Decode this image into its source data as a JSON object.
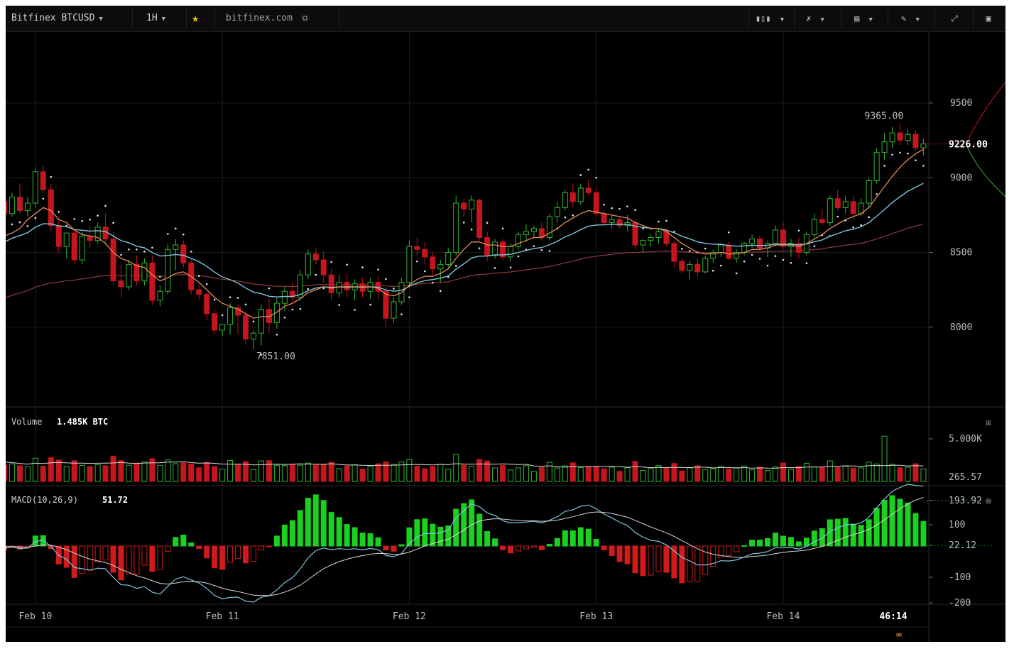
{
  "toolbar": {
    "symbol": "Bitfinex BTCUSD",
    "interval": "1H",
    "site": "bitfinex.com",
    "icons": [
      "candles-icon",
      "indicators-icon",
      "compare-icon",
      "draw-icon",
      "fullscreen-icon",
      "screenshot-icon"
    ]
  },
  "colors": {
    "background": "#000000",
    "up": "#2fb62f",
    "down": "#c4161c",
    "ema_fast": "#e38a5a",
    "ema_slow": "#7fc3db",
    "ema_long": "#8b3a40",
    "macd_line": "#7fc3db",
    "signal_line": "#d8d8d8",
    "hist_up": "#19d11f",
    "hist_down": "#d21a1a"
  },
  "chart_data": [
    {
      "type": "candlestick",
      "panel": "price",
      "x_ticks": [
        "Feb 10",
        "Feb 11",
        "Feb 12",
        "Feb 13",
        "Feb 14"
      ],
      "x_ticks_hour_index": [
        5,
        29,
        53,
        77,
        101
      ],
      "y_ticks": [
        8000,
        8500,
        9000,
        9500
      ],
      "ylim": [
        7500,
        9980
      ],
      "current_price": "9226.00",
      "high_annotation": "9365.00",
      "low_annotation": "7851.00",
      "ohlc": [
        [
          8600,
          8880,
          8520,
          8840
        ],
        [
          8840,
          8900,
          8720,
          8760
        ],
        [
          8760,
          8900,
          8740,
          8870
        ],
        [
          8870,
          8960,
          8760,
          8780
        ],
        [
          8780,
          8870,
          8740,
          8830
        ],
        [
          8830,
          9070,
          8800,
          9040
        ],
        [
          9040,
          9080,
          8900,
          8920
        ],
        [
          8920,
          8960,
          8640,
          8680
        ],
        [
          8680,
          8720,
          8500,
          8540
        ],
        [
          8540,
          8620,
          8460,
          8630
        ],
        [
          8630,
          8660,
          8420,
          8450
        ],
        [
          8450,
          8640,
          8420,
          8610
        ],
        [
          8610,
          8680,
          8530,
          8580
        ],
        [
          8580,
          8700,
          8560,
          8670
        ],
        [
          8670,
          8760,
          8560,
          8590
        ],
        [
          8590,
          8640,
          8280,
          8310
        ],
        [
          8310,
          8420,
          8200,
          8270
        ],
        [
          8270,
          8450,
          8250,
          8420
        ],
        [
          8420,
          8480,
          8280,
          8310
        ],
        [
          8310,
          8460,
          8280,
          8430
        ],
        [
          8430,
          8480,
          8150,
          8180
        ],
        [
          8180,
          8280,
          8140,
          8240
        ],
        [
          8240,
          8560,
          8220,
          8520
        ],
        [
          8520,
          8590,
          8380,
          8550
        ],
        [
          8550,
          8580,
          8400,
          8430
        ],
        [
          8430,
          8460,
          8220,
          8250
        ],
        [
          8250,
          8290,
          8180,
          8220
        ],
        [
          8220,
          8230,
          8050,
          8090
        ],
        [
          8090,
          8120,
          7950,
          7980
        ],
        [
          7980,
          8010,
          7940,
          8020
        ],
        [
          8020,
          8160,
          7950,
          8130
        ],
        [
          8130,
          8150,
          7950,
          8080
        ],
        [
          8080,
          8100,
          7880,
          7920
        ],
        [
          7920,
          7980,
          7851,
          7960
        ],
        [
          7960,
          8150,
          7880,
          8120
        ],
        [
          8120,
          8190,
          7960,
          8030
        ],
        [
          8030,
          8200,
          7990,
          8160
        ],
        [
          8160,
          8270,
          8110,
          8240
        ],
        [
          8240,
          8300,
          8170,
          8200
        ],
        [
          8200,
          8380,
          8180,
          8350
        ],
        [
          8350,
          8520,
          8320,
          8490
        ],
        [
          8490,
          8530,
          8420,
          8450
        ],
        [
          8450,
          8510,
          8300,
          8350
        ],
        [
          8350,
          8390,
          8180,
          8230
        ],
        [
          8230,
          8350,
          8200,
          8300
        ],
        [
          8300,
          8360,
          8200,
          8250
        ],
        [
          8250,
          8320,
          8180,
          8290
        ],
        [
          8290,
          8330,
          8200,
          8240
        ],
        [
          8240,
          8330,
          8190,
          8300
        ],
        [
          8300,
          8340,
          8190,
          8240
        ],
        [
          8240,
          8270,
          8000,
          8060
        ],
        [
          8060,
          8200,
          8030,
          8170
        ],
        [
          8170,
          8330,
          8150,
          8300
        ],
        [
          8300,
          8580,
          8270,
          8540
        ],
        [
          8540,
          8600,
          8480,
          8520
        ],
        [
          8520,
          8570,
          8420,
          8470
        ],
        [
          8470,
          8500,
          8350,
          8390
        ],
        [
          8390,
          8450,
          8300,
          8420
        ],
        [
          8420,
          8530,
          8400,
          8500
        ],
        [
          8500,
          8880,
          8480,
          8830
        ],
        [
          8830,
          8860,
          8740,
          8790
        ],
        [
          8790,
          8880,
          8700,
          8850
        ],
        [
          8850,
          8860,
          8580,
          8600
        ],
        [
          8600,
          8640,
          8440,
          8480
        ],
        [
          8480,
          8590,
          8460,
          8570
        ],
        [
          8570,
          8590,
          8450,
          8470
        ],
        [
          8470,
          8560,
          8440,
          8540
        ],
        [
          8540,
          8640,
          8520,
          8620
        ],
        [
          8620,
          8690,
          8570,
          8640
        ],
        [
          8640,
          8680,
          8600,
          8660
        ],
        [
          8660,
          8700,
          8580,
          8600
        ],
        [
          8600,
          8760,
          8580,
          8740
        ],
        [
          8740,
          8840,
          8700,
          8800
        ],
        [
          8800,
          8920,
          8780,
          8900
        ],
        [
          8900,
          8960,
          8800,
          8840
        ],
        [
          8840,
          8960,
          8820,
          8930
        ],
        [
          8930,
          8990,
          8880,
          8900
        ],
        [
          8900,
          8930,
          8740,
          8760
        ],
        [
          8760,
          8780,
          8680,
          8700
        ],
        [
          8700,
          8750,
          8660,
          8720
        ],
        [
          8720,
          8740,
          8660,
          8680
        ],
        [
          8680,
          8750,
          8640,
          8700
        ],
        [
          8700,
          8720,
          8520,
          8550
        ],
        [
          8550,
          8590,
          8500,
          8580
        ],
        [
          8580,
          8620,
          8540,
          8600
        ],
        [
          8600,
          8660,
          8560,
          8640
        ],
        [
          8640,
          8660,
          8540,
          8560
        ],
        [
          8560,
          8580,
          8400,
          8440
        ],
        [
          8440,
          8460,
          8360,
          8380
        ],
        [
          8380,
          8440,
          8320,
          8420
        ],
        [
          8420,
          8460,
          8340,
          8370
        ],
        [
          8370,
          8480,
          8360,
          8460
        ],
        [
          8460,
          8520,
          8430,
          8500
        ],
        [
          8500,
          8560,
          8470,
          8550
        ],
        [
          8550,
          8570,
          8450,
          8460
        ],
        [
          8460,
          8520,
          8430,
          8500
        ],
        [
          8500,
          8570,
          8480,
          8560
        ],
        [
          8560,
          8620,
          8530,
          8590
        ],
        [
          8590,
          8610,
          8510,
          8530
        ],
        [
          8530,
          8580,
          8470,
          8560
        ],
        [
          8560,
          8680,
          8540,
          8650
        ],
        [
          8650,
          8700,
          8520,
          8540
        ],
        [
          8540,
          8590,
          8470,
          8560
        ],
        [
          8560,
          8600,
          8460,
          8500
        ],
        [
          8500,
          8640,
          8480,
          8620
        ],
        [
          8620,
          8760,
          8600,
          8720
        ],
        [
          8720,
          8790,
          8680,
          8700
        ],
        [
          8700,
          8880,
          8680,
          8860
        ],
        [
          8860,
          8920,
          8780,
          8800
        ],
        [
          8800,
          8880,
          8760,
          8840
        ],
        [
          8840,
          8880,
          8720,
          8760
        ],
        [
          8760,
          8860,
          8740,
          8830
        ],
        [
          8830,
          9000,
          8800,
          8980
        ],
        [
          8980,
          9200,
          8960,
          9170
        ],
        [
          9170,
          9300,
          9120,
          9240
        ],
        [
          9240,
          9340,
          9200,
          9300
        ],
        [
          9300,
          9365,
          9220,
          9250
        ],
        [
          9250,
          9330,
          9220,
          9290
        ],
        [
          9290,
          9320,
          9180,
          9200
        ],
        [
          9200,
          9260,
          9150,
          9226
        ]
      ],
      "ema_fast": [
        8560,
        8610,
        8630,
        8660,
        8720,
        8760,
        8800,
        8780,
        8720,
        8700,
        8650,
        8620,
        8610,
        8600,
        8560,
        8500,
        8460,
        8440,
        8410,
        8400,
        8350,
        8310,
        8330,
        8360,
        8370,
        8340,
        8300,
        8250,
        8200,
        8160,
        8140,
        8120,
        8090,
        8060,
        8070,
        8070,
        8100,
        8140,
        8160,
        8190,
        8230,
        8250,
        8270,
        8260,
        8270,
        8270,
        8270,
        8270,
        8270,
        8260,
        8220,
        8210,
        8230,
        8280,
        8320,
        8340,
        8340,
        8360,
        8390,
        8460,
        8520,
        8570,
        8570,
        8550,
        8550,
        8540,
        8540,
        8560,
        8580,
        8600,
        8600,
        8630,
        8660,
        8700,
        8730,
        8760,
        8780,
        8770,
        8760,
        8750,
        8740,
        8730,
        8700,
        8680,
        8660,
        8660,
        8640,
        8600,
        8560,
        8530,
        8500,
        8490,
        8490,
        8500,
        8490,
        8490,
        8500,
        8520,
        8520,
        8530,
        8550,
        8550,
        8550,
        8540,
        8560,
        8590,
        8620,
        8660,
        8690,
        8720,
        8740,
        8760,
        8800,
        8870,
        8940,
        9010,
        9070,
        9120,
        9160,
        9190
      ]
    },
    {
      "type": "bar",
      "panel": "volume",
      "label": "Volume",
      "value_label": "1.485K BTC",
      "y_ticks": [
        "5.000K",
        "265.57"
      ]
    },
    {
      "type": "line+bar",
      "panel": "macd",
      "label": "MACD(10,26,9)",
      "value_label": "51.72",
      "y_ticks": [
        "193.92",
        "100",
        "22.12",
        "-100",
        "-200"
      ],
      "ylim": [
        -240,
        240
      ]
    }
  ]
}
